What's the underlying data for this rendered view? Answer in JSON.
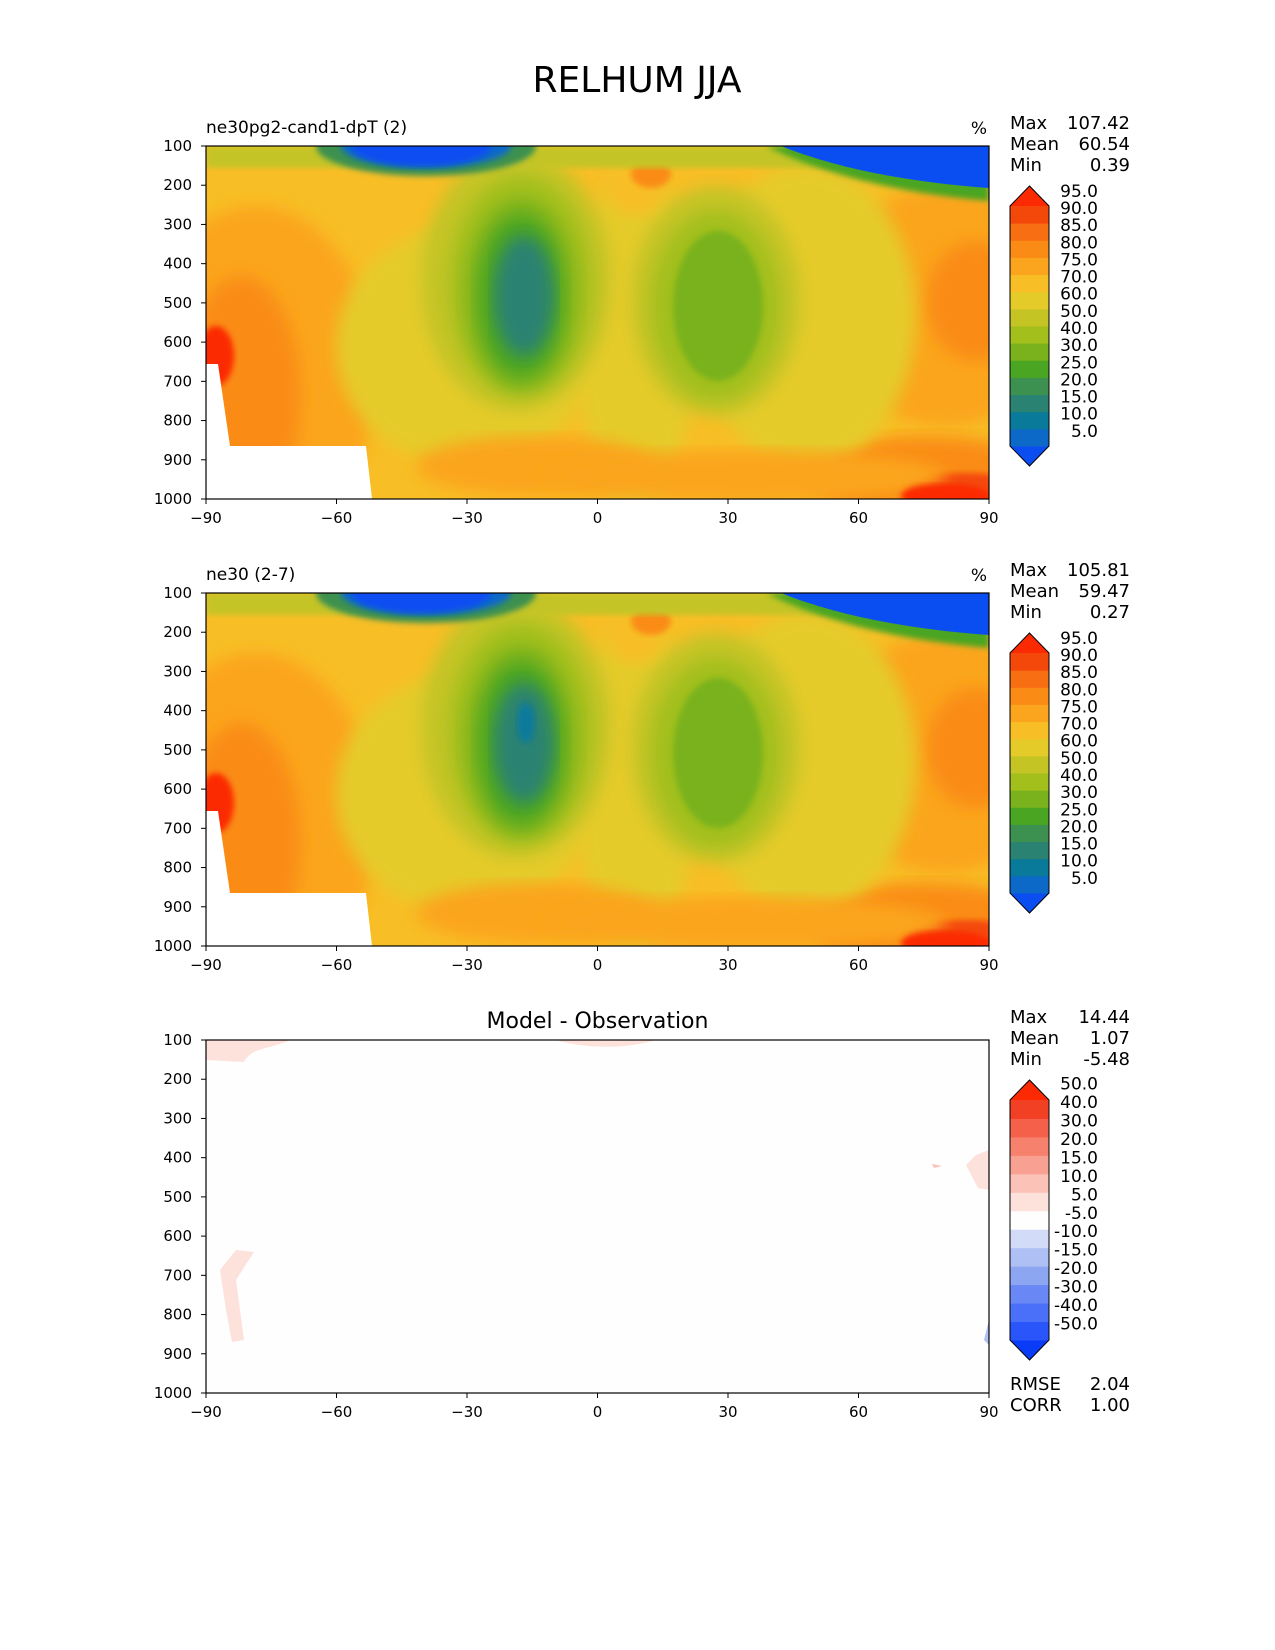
{
  "title": "RELHUM JJA",
  "chart_data": [
    {
      "type": "heatmap",
      "panel_title": "ne30pg2-cand1-dpT (2)",
      "units": "%",
      "stats": {
        "max_label": "Max",
        "max": "107.42",
        "mean_label": "Mean",
        "mean": "60.54",
        "min_label": "Min",
        "min": "0.39"
      },
      "x_ticks": [
        "−90",
        "−60",
        "−30",
        "0",
        "30",
        "60",
        "90"
      ],
      "xlim": [
        -90,
        90
      ],
      "y_ticks": [
        "100",
        "200",
        "300",
        "400",
        "500",
        "600",
        "700",
        "800",
        "900",
        "1000"
      ],
      "ylim": [
        100,
        1000
      ],
      "colorbar_levels": [
        "5.0",
        "10.0",
        "15.0",
        "20.0",
        "25.0",
        "30.0",
        "40.0",
        "50.0",
        "60.0",
        "70.0",
        "75.0",
        "80.0",
        "85.0",
        "90.0",
        "95.0"
      ],
      "colorbar_colors": [
        "#0a4ef2",
        "#0c69c8",
        "#0a7a9b",
        "#2a8272",
        "#3c9150",
        "#4aa523",
        "#79b21d",
        "#a2bf1c",
        "#c4c425",
        "#e5cb2a",
        "#f8be26",
        "#fba51f",
        "#fa8c16",
        "#f86e12",
        "#f4480b",
        "#fc2a02"
      ],
      "overlay": "none"
    },
    {
      "type": "heatmap",
      "panel_title": "ne30 (2-7)",
      "units": "%",
      "stats": {
        "max_label": "Max",
        "max": "105.81",
        "mean_label": "Mean",
        "mean": "59.47",
        "min_label": "Min",
        "min": "0.27"
      },
      "x_ticks": [
        "−90",
        "−60",
        "−30",
        "0",
        "30",
        "60",
        "90"
      ],
      "xlim": [
        -90,
        90
      ],
      "y_ticks": [
        "100",
        "200",
        "300",
        "400",
        "500",
        "600",
        "700",
        "800",
        "900",
        "1000"
      ],
      "ylim": [
        100,
        1000
      ],
      "colorbar_levels": [
        "5.0",
        "10.0",
        "15.0",
        "20.0",
        "25.0",
        "30.0",
        "40.0",
        "50.0",
        "60.0",
        "70.0",
        "75.0",
        "80.0",
        "85.0",
        "90.0",
        "95.0"
      ],
      "colorbar_colors": [
        "#0a4ef2",
        "#0c69c8",
        "#0a7a9b",
        "#2a8272",
        "#3c9150",
        "#4aa523",
        "#79b21d",
        "#a2bf1c",
        "#c4c425",
        "#e5cb2a",
        "#f8be26",
        "#fba51f",
        "#fa8c16",
        "#f86e12",
        "#f4480b",
        "#fc2a02"
      ],
      "overlay": "none"
    },
    {
      "type": "heatmap",
      "panel_title": "Model - Observation",
      "units": "",
      "stats": {
        "max_label": "Max",
        "max": "14.44",
        "mean_label": "Mean",
        "mean": "1.07",
        "min_label": "Min",
        "min": "-5.48"
      },
      "x_ticks": [
        "−90",
        "−60",
        "−30",
        "0",
        "30",
        "60",
        "90"
      ],
      "xlim": [
        -90,
        90
      ],
      "y_ticks": [
        "100",
        "200",
        "300",
        "400",
        "500",
        "600",
        "700",
        "800",
        "900",
        "1000"
      ],
      "ylim": [
        100,
        1000
      ],
      "colorbar_levels": [
        "-50.0",
        "-40.0",
        "-30.0",
        "-20.0",
        "-15.0",
        "-10.0",
        "-5.0",
        "5.0",
        "10.0",
        "15.0",
        "20.0",
        "30.0",
        "40.0",
        "50.0"
      ],
      "colorbar_colors": [
        "#0a3cf8",
        "#2a55fa",
        "#4a6ff8",
        "#6a88f5",
        "#8da6f2",
        "#aec0f4",
        "#d2dcf8",
        "#fefefe",
        "#fde2dc",
        "#fbc2b7",
        "#f8a192",
        "#f6826e",
        "#f4604a",
        "#f24025",
        "#fc2a02"
      ],
      "rmse_label": "RMSE",
      "rmse": "2.04",
      "corr_label": "CORR",
      "corr": "1.00",
      "overlay": "diff"
    }
  ]
}
